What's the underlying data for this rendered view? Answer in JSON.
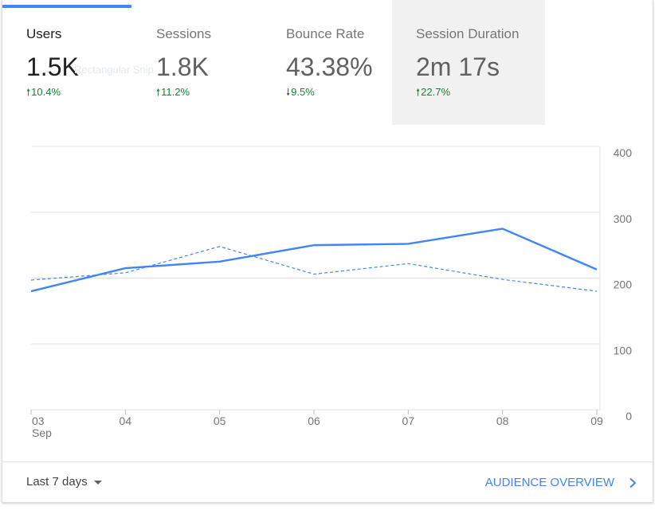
{
  "tabs": [
    {
      "label": "Users",
      "value": "1.5K",
      "change": "10.4%",
      "direction": "up",
      "change_color": "#188038"
    },
    {
      "label": "Sessions",
      "value": "1.8K",
      "change": "11.2%",
      "direction": "up",
      "change_color": "#188038"
    },
    {
      "label": "Bounce Rate",
      "value": "43.38%",
      "change": "9.5%",
      "direction": "down",
      "change_color": "#188038"
    },
    {
      "label": "Session Duration",
      "value": "2m 17s",
      "change": "22.7%",
      "direction": "up",
      "change_color": "#188038"
    }
  ],
  "ghost_text": "Rectangular Snip",
  "chart_data": {
    "type": "line",
    "x": [
      "03",
      "04",
      "05",
      "06",
      "07",
      "08",
      "09"
    ],
    "x_sublabel": "Sep",
    "y_ticks": [
      "400",
      "300",
      "200",
      "100",
      "0"
    ],
    "ylim": [
      0,
      400
    ],
    "grid": true,
    "series": [
      {
        "style": "solid",
        "color": "#4285f4",
        "values": [
          180,
          215,
          225,
          250,
          252,
          275,
          213
        ]
      },
      {
        "style": "dashed",
        "color": "#4285f4",
        "values": [
          197,
          208,
          248,
          206,
          222,
          198,
          180
        ]
      }
    ]
  },
  "footer": {
    "range_label": "Last 7 days",
    "overview_label": "AUDIENCE OVERVIEW"
  },
  "colors": {
    "accent": "#4285f4",
    "positive": "#188038"
  },
  "icons": {
    "range_caret": "caret-down-icon",
    "overview_chevron": "chevron-right-icon"
  }
}
